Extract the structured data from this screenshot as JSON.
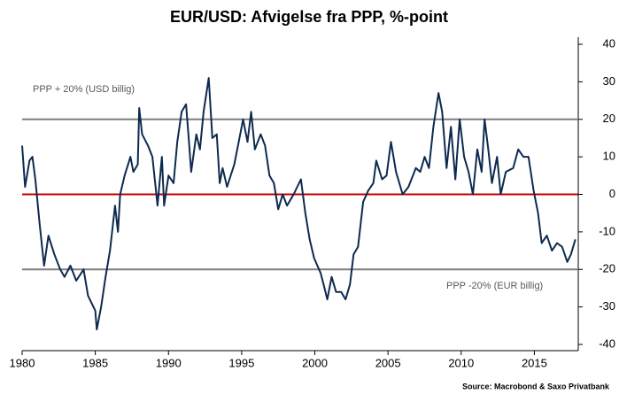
{
  "chart_data": {
    "type": "line",
    "title": "EUR/USD: Afvigelse fra PPP, %-point",
    "source": "Source: Macrobond & Saxo Privatbank",
    "annotations": [
      "PPP + 20% (USD billig)",
      "PPP -20% (EUR billig)"
    ],
    "reference_lines": [
      {
        "value": 20,
        "color": "#7f7f7f"
      },
      {
        "value": 0,
        "color": "#c00000"
      },
      {
        "value": -20,
        "color": "#7f7f7f"
      }
    ],
    "xlim": [
      1980,
      2018
    ],
    "xticks": [
      1980,
      1985,
      1990,
      1995,
      2000,
      2005,
      2010,
      2015
    ],
    "ylim": [
      -40,
      40
    ],
    "yticks": [
      -40,
      -30,
      -20,
      -10,
      0,
      10,
      20,
      30,
      40
    ],
    "series": [
      {
        "color": "#0d2a4f",
        "x": [
          1980.0,
          1980.2,
          1980.5,
          1980.7,
          1980.9,
          1981.2,
          1981.5,
          1981.8,
          1982.2,
          1982.6,
          1982.9,
          1983.3,
          1983.7,
          1984.2,
          1984.5,
          1985.0,
          1985.1,
          1985.4,
          1985.7,
          1986.0,
          1986.35,
          1986.55,
          1986.7,
          1987.0,
          1987.4,
          1987.6,
          1987.9,
          1988.0,
          1988.2,
          1988.6,
          1988.9,
          1989.25,
          1989.55,
          1989.7,
          1990.0,
          1990.35,
          1990.6,
          1990.9,
          1991.2,
          1991.4,
          1991.55,
          1991.9,
          1992.15,
          1992.4,
          1992.75,
          1993.0,
          1993.3,
          1993.5,
          1993.7,
          1994.0,
          1994.5,
          1994.8,
          1995.1,
          1995.4,
          1995.65,
          1995.9,
          1996.3,
          1996.6,
          1996.9,
          1997.2,
          1997.5,
          1997.8,
          1998.1,
          1998.55,
          1999.05,
          1999.35,
          1999.65,
          1999.95,
          2000.4,
          2000.6,
          2000.85,
          2001.15,
          2001.45,
          2001.8,
          2002.1,
          2002.4,
          2002.65,
          2002.95,
          2003.3,
          2003.65,
          2004.0,
          2004.2,
          2004.6,
          2004.9,
          2005.2,
          2005.55,
          2006.0,
          2006.4,
          2006.9,
          2007.2,
          2007.5,
          2007.8,
          2008.1,
          2008.45,
          2008.7,
          2009.0,
          2009.3,
          2009.6,
          2009.9,
          2010.2,
          2010.5,
          2010.8,
          2011.1,
          2011.4,
          2011.6,
          2011.85,
          2012.1,
          2012.45,
          2012.7,
          2013.05,
          2013.55,
          2013.9,
          2014.25,
          2014.6,
          2014.95,
          2015.25,
          2015.5,
          2015.85,
          2016.2,
          2016.55,
          2016.9,
          2017.25,
          2017.5,
          2017.8
        ],
        "values": [
          13,
          2,
          9,
          10,
          4,
          -8,
          -19,
          -11,
          -16,
          -20,
          -22,
          -19,
          -23,
          -20,
          -27,
          -31,
          -36,
          -30,
          -22,
          -15,
          -3,
          -10,
          0,
          5,
          10,
          6,
          8,
          23,
          16,
          13,
          10,
          -3,
          10,
          -3,
          5,
          3,
          14,
          22,
          24,
          14,
          6,
          16,
          12,
          22,
          31,
          15,
          16,
          3,
          7,
          2,
          8,
          14,
          20,
          14,
          22,
          12,
          16,
          13,
          5,
          3,
          -4,
          0,
          -3,
          0,
          4,
          -5,
          -12,
          -17,
          -21,
          -24,
          -28,
          -22,
          -26,
          -26,
          -28,
          -24,
          -16,
          -14,
          -2,
          1,
          3,
          9,
          4,
          5,
          14,
          6,
          0,
          2,
          7,
          6,
          10,
          7,
          18,
          27,
          22,
          7,
          18,
          4,
          20,
          10,
          6,
          0,
          12,
          6,
          20,
          12,
          3,
          10,
          0,
          6,
          7,
          12,
          10,
          10,
          1,
          -5,
          -13,
          -11,
          -15,
          -13,
          -14,
          -18,
          -16,
          -12
        ]
      }
    ]
  }
}
